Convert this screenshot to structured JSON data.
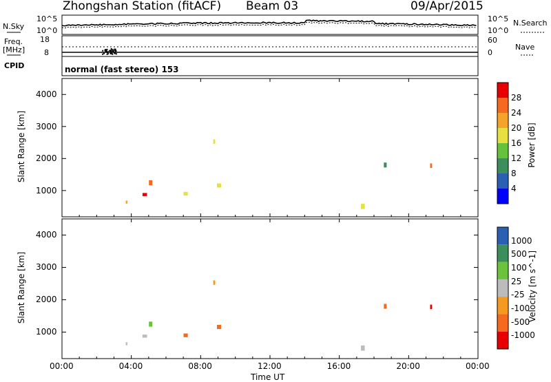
{
  "header": {
    "station": "Zhongshan Station (fitACF)",
    "beam": "Beam 03",
    "date": "09/Apr/2015"
  },
  "top_panel": {
    "left_label": "N.Sky",
    "right_label": "N.Search",
    "left_ticks": [
      "10^5",
      "10^0"
    ],
    "right_ticks": [
      "10^5",
      "10^0"
    ]
  },
  "freq_panel": {
    "left_label_1": "Freq.",
    "left_label_2": "[MHz]",
    "right_label": "Nave",
    "left_ticks": [
      "18",
      "8"
    ],
    "right_ticks": [
      "60",
      "0"
    ]
  },
  "cpid_panel": {
    "label": "CPID",
    "text": "normal (fast stereo) 153"
  },
  "colors": {
    "power": [
      "#0000ff",
      "#2a5fb4",
      "#3a8f5a",
      "#66c23a",
      "#e6e040",
      "#f5a32a",
      "#f56a1e",
      "#e80000"
    ],
    "velocity": [
      "#e80000",
      "#f56a1e",
      "#f59a20",
      "#bcbcbc",
      "#6cc23a",
      "#3a8f5a",
      "#2a5fb4"
    ],
    "axis": "#000000"
  },
  "chart_data": [
    {
      "type": "heatmap",
      "title": "",
      "xlabel": "Time UT",
      "ylabel": "Slant Range [km]",
      "xlim": [
        0,
        24
      ],
      "ylim": [
        180,
        4500
      ],
      "x_ticks": [
        "00:00",
        "04:00",
        "08:00",
        "12:00",
        "16:00",
        "20:00",
        "00:00"
      ],
      "y_ticks": [
        1000,
        2000,
        3000,
        4000
      ],
      "colorbar": {
        "label": "Power [dB]",
        "range": [
          0,
          32
        ],
        "ticks": [
          "4",
          "8",
          "12",
          "16",
          "20",
          "24",
          "28"
        ]
      }
    },
    {
      "type": "heatmap",
      "title": "",
      "xlabel": "Time UT",
      "ylabel": "Slant Range [km]",
      "xlim": [
        0,
        24
      ],
      "ylim": [
        180,
        4500
      ],
      "x_ticks": [
        "00:00",
        "04:00",
        "08:00",
        "12:00",
        "16:00",
        "20:00",
        "00:00"
      ],
      "y_ticks": [
        1000,
        2000,
        3000,
        4000
      ],
      "colorbar": {
        "label": "Velocity [m s^-1]",
        "ticks": [
          "1000",
          "500",
          "100",
          "25",
          "-25",
          "-100",
          "-500",
          "-1000"
        ]
      }
    }
  ]
}
